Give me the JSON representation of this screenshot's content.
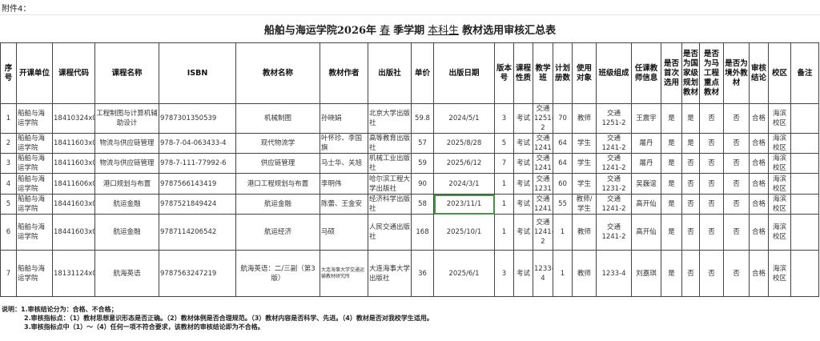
{
  "attachment": "附件4：",
  "title": {
    "prefix": "船舶与海运学院2026年",
    "season": "春",
    "mid": "季学期",
    "level": "本科生",
    "suffix": "教材选用审核汇总表"
  },
  "columns": [
    "序号",
    "开课单位",
    "课程代码",
    "课程名称",
    "ISBN",
    "教材名称",
    "教材作者",
    "出版社",
    "单价",
    "出版日期",
    "版本号",
    "课程性质",
    "教学班",
    "计划册数",
    "使用对象",
    "班级组成",
    "任课教师信息",
    "是否首次选用",
    "是否为国家级规划教材",
    "是否为马工程重点教材",
    "是否为境外教材",
    "审核结论",
    "校区",
    "备注"
  ],
  "rows": [
    [
      "1",
      "船舶与海运学院",
      "18410324x0",
      "工程制图与计算机辅助设计",
      "9787301350539",
      "机械制图",
      "孙晓娟",
      "北京大学出版社",
      "59.8",
      "2024/5/1",
      "3",
      "考试",
      "交通1251-2",
      "70",
      "教师",
      "交通1251-2",
      "王震宇",
      "是",
      "是",
      "否",
      "否",
      "合格",
      "海滨校区",
      ""
    ],
    [
      "2",
      "船舶与海运学院",
      "18411603x0",
      "物流与供应链管理",
      "978-7-04-063433-4",
      "现代物流学",
      "叶怀珍、李国旗",
      "高等教育出版社",
      "57",
      "2025/8/28",
      "5",
      "考试",
      "交通1241",
      "64",
      "学生",
      "交通1241-2",
      "屠丹",
      "是",
      "是",
      "否",
      "否",
      "合格",
      "海滨校区",
      ""
    ],
    [
      "3",
      "船舶与海运学院",
      "18411603x0",
      "物流与供应链管理",
      "978-7-111-77992-6",
      "供应链管理",
      "马士华、关旭",
      "机械工业出版社",
      "59",
      "2025/6/12",
      "7",
      "考试",
      "交通1241",
      "64",
      "学生",
      "交通1241-2",
      "屠丹",
      "是",
      "否",
      "否",
      "否",
      "合格",
      "海滨校区",
      ""
    ],
    [
      "4",
      "船舶与海运学院",
      "18411606x0",
      "港口规划与布置",
      "9787566143419",
      "港口工程规划与布置",
      "李明伟",
      "哈尔滨工程大学出版社",
      "90",
      "2024/3/1",
      "1",
      "考试",
      "交通1231",
      "60",
      "学生",
      "交通1231-2",
      "吴巍谊",
      "是",
      "否",
      "否",
      "否",
      "合格",
      "海滨校区",
      ""
    ],
    [
      "5",
      "船舶与海运学院",
      "18441603x0",
      "航运金融",
      "9787521849424",
      "航运金融",
      "陈蕾、王金安",
      "经济科学出版社",
      "58",
      "2023/11/1",
      "1",
      "考试",
      "交通1241",
      "55",
      "教师/学生",
      "交通1241-2",
      "高开仙",
      "是",
      "否",
      "否",
      "否",
      "合格",
      "海滨校区",
      ""
    ],
    [
      "6",
      "船舶与海运学院",
      "18441603x0",
      "航运金融",
      "9787114206542",
      "航运经济",
      "马硕",
      "人民交通出版社",
      "168",
      "2025/10/1",
      "1",
      "考试",
      "交通1241-2",
      "1",
      "教师",
      "交通1241-2",
      "高开仙",
      "是",
      "否",
      "否",
      "否",
      "合格",
      "海滨校区",
      ""
    ],
    [
      "7",
      "船舶与海运学院",
      "18131124x0",
      "航海英语",
      "9787563247219",
      "航海英语：二/三副（第3版）",
      "大连海事大学交通运输教材研究所",
      "大连海事大学出版社",
      "36",
      "2025/6/1",
      "3",
      "考试",
      "1233-4",
      "1",
      "教师",
      "1233-4",
      "刘嘉琪",
      "是",
      "否",
      "否",
      "否",
      "合格",
      "海滨校区",
      ""
    ]
  ],
  "notes": [
    "说明：1.审核结论分为：合格、不合格；",
    "2.审核指标点：（1）教材思想意识形态是否正确。（2）教材体例是否合理规范。（3）教材内容是否科学、先进。（4）教材是否对我校学生适用。",
    "3.审核指标点中（1）～（4）任何一项不符合要求，该教材的审核结论即为不合格。"
  ]
}
